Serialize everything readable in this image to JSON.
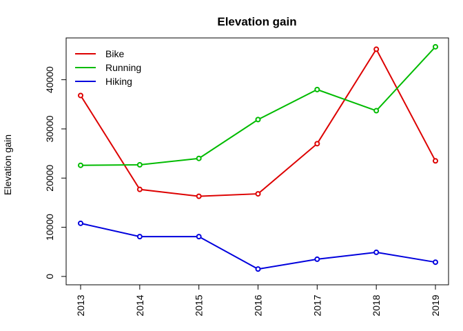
{
  "chart_data": {
    "type": "line",
    "title": "Elevation gain",
    "xlabel": "",
    "ylabel": "Elevation gain",
    "categories": [
      "2013",
      "2014",
      "2015",
      "2016",
      "2017",
      "2018",
      "2019"
    ],
    "yticks": [
      0,
      10000,
      20000,
      30000,
      40000
    ],
    "ytick_labels": [
      "0",
      "10000",
      "20000",
      "30000",
      "40000"
    ],
    "ylim": [
      -1700,
      48500
    ],
    "grid": false,
    "legend_position": "top-left",
    "series": [
      {
        "name": "Bike",
        "color": "#dd0000",
        "values": [
          36800,
          17700,
          16300,
          16800,
          27000,
          46200,
          23500
        ]
      },
      {
        "name": "Running",
        "color": "#00bb00",
        "values": [
          22600,
          22700,
          24000,
          31900,
          38000,
          33700,
          46700
        ]
      },
      {
        "name": "Hiking",
        "color": "#0000dd",
        "values": [
          10800,
          8100,
          8100,
          1500,
          3500,
          4900,
          2900
        ]
      }
    ]
  }
}
